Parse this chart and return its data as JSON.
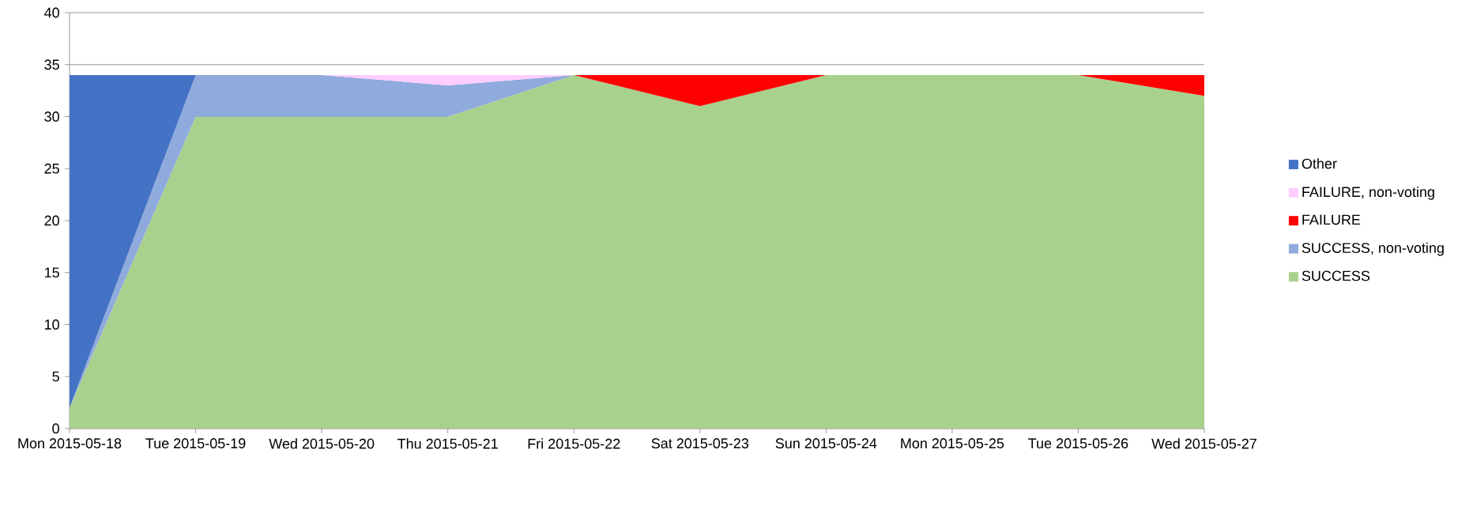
{
  "chart_data": {
    "type": "area",
    "stacked": true,
    "categories": [
      "Mon 2015-05-18",
      "Tue 2015-05-19",
      "Wed 2015-05-20",
      "Thu 2015-05-21",
      "Fri 2015-05-22",
      "Sat 2015-05-23",
      "Sun 2015-05-24",
      "Mon 2015-05-25",
      "Tue 2015-05-26",
      "Wed 2015-05-27"
    ],
    "series": [
      {
        "name": "SUCCESS",
        "color": "#a9d18e",
        "values": [
          2,
          30,
          30,
          30,
          34,
          31,
          34,
          34,
          34,
          32
        ]
      },
      {
        "name": "SUCCESS, non-voting",
        "color": "#8faadc",
        "values": [
          0,
          4,
          4,
          3,
          0,
          null,
          null,
          null,
          null,
          null
        ]
      },
      {
        "name": "FAILURE",
        "color": "#ff0000",
        "values": [
          null,
          null,
          null,
          null,
          0,
          3,
          0,
          null,
          0,
          2
        ]
      },
      {
        "name": "FAILURE, non-voting",
        "color": "#ffccff",
        "values": [
          null,
          null,
          0,
          1,
          0,
          null,
          null,
          null,
          null,
          null
        ]
      },
      {
        "name": "Other",
        "color": "#4472c4",
        "values": [
          32,
          0,
          null,
          null,
          null,
          null,
          null,
          null,
          null,
          null
        ]
      }
    ],
    "ylim": [
      0,
      40
    ],
    "yticks": [
      0,
      5,
      10,
      15,
      20,
      25,
      30,
      35,
      40
    ],
    "grid": "y",
    "legend": "right"
  }
}
